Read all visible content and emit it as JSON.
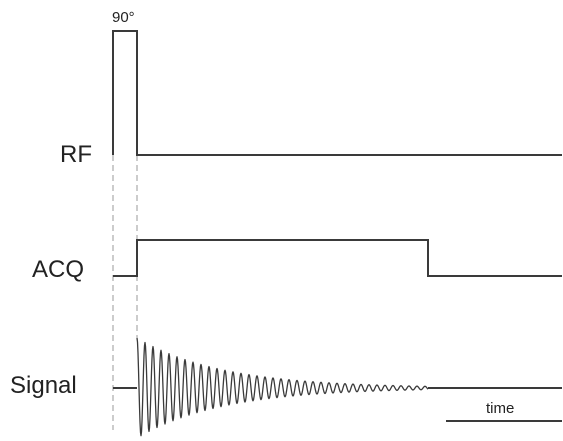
{
  "pulse": {
    "angle_label": "90°"
  },
  "rows": {
    "rf": {
      "label": "RF"
    },
    "acq": {
      "label": "ACQ"
    },
    "signal": {
      "label": "Signal"
    }
  },
  "time_scale": {
    "label": "time"
  },
  "colors": {
    "trace": "#3a3a3a",
    "guide": "#9a9a9a",
    "text": "#222222"
  }
}
